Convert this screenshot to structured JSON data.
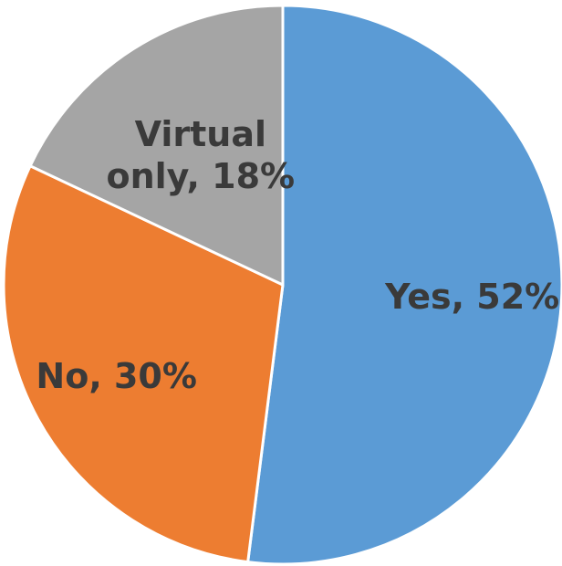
{
  "chart_data": {
    "type": "pie",
    "categories": [
      "Yes",
      "No",
      "Virtual only"
    ],
    "values": [
      52,
      30,
      18
    ],
    "colors": [
      "#5b9bd5",
      "#ed7d31",
      "#a5a5a5"
    ],
    "data_labels": [
      [
        "Yes, 52%"
      ],
      [
        "No, 30%"
      ],
      [
        "Virtual",
        "only, 18%"
      ]
    ],
    "start_angle_deg": 0,
    "direction": "clockwise",
    "legend": "none"
  }
}
